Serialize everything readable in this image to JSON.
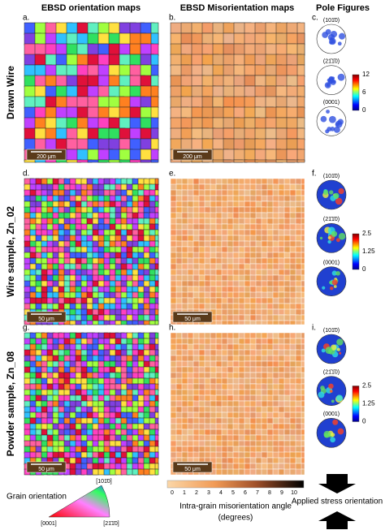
{
  "columns": [
    "EBSD orientation maps",
    "EBSD Misorientation maps",
    "Pole Figures"
  ],
  "rows": [
    {
      "label": "Drawn Wire",
      "panels": [
        "a.",
        "b.",
        "c."
      ],
      "scale_bars": [
        "200 μm",
        "200 μm"
      ],
      "pole_figures": [
        "(101̄0)",
        "(21̄1̄0)",
        "(0001)"
      ],
      "colorbar_ticks": [
        12,
        6,
        0
      ]
    },
    {
      "label": "Wire sample, Zn_02",
      "panels": [
        "d.",
        "e.",
        "f."
      ],
      "scale_bars": [
        "50 μm",
        "50 μm"
      ],
      "pole_figures": [
        "(101̄0)",
        "(21̄1̄0)",
        "(0001)"
      ],
      "colorbar_ticks": [
        2.5,
        1.25,
        0
      ]
    },
    {
      "label": "Powder sample, Zn_08",
      "panels": [
        "g.",
        "h.",
        "i."
      ],
      "scale_bars": [
        "50 μm",
        "50 μm"
      ],
      "pole_figures": [
        "(101̄0)",
        "(21̄1̄0)",
        "(0001)"
      ],
      "colorbar_ticks": [
        2.5,
        1.25,
        0
      ]
    }
  ],
  "orientation_legend": {
    "title": "Grain orientation",
    "corners": [
      "[0001]",
      "[21̄1̄0]",
      "[101̄0]"
    ]
  },
  "misorientation_legend": {
    "ticks": [
      0,
      1,
      2,
      3,
      4,
      5,
      6,
      7,
      8,
      9,
      10
    ],
    "label": "Intra-grain misorientation angle",
    "unit": "(degrees)"
  },
  "stress_label": "Applied stress orientation"
}
